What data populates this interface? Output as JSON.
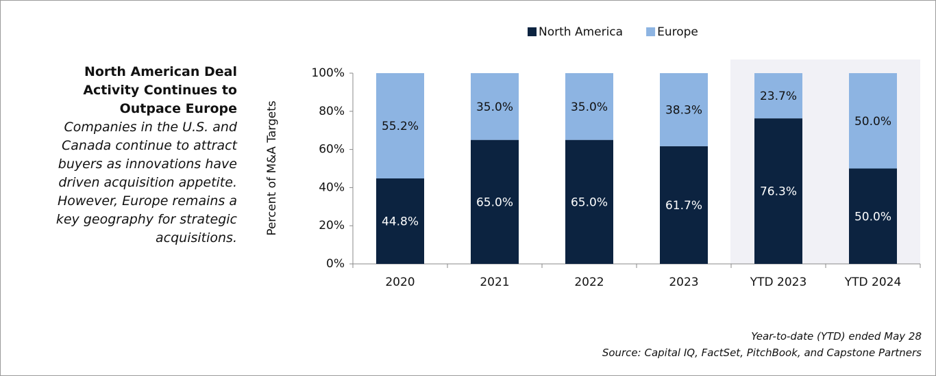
{
  "chart_data": {
    "type": "stacked_bar",
    "title": "North American Deal Activity Continues to Outpace Europe",
    "subtitle": "Companies in the U.S. and Canada continue to attract buyers as innovations have driven acquisition appetite. However, Europe remains a key geography for strategic acquisitions.",
    "y_label": "Percent of M&A Targets",
    "categories": [
      "2020",
      "2021",
      "2022",
      "2023",
      "YTD 2023",
      "YTD 2024"
    ],
    "series": [
      {
        "name": "North America",
        "color": "#0c2340",
        "values": [
          44.8,
          65.0,
          65.0,
          61.7,
          76.3,
          50.0
        ],
        "value_labels": [
          "44.8%",
          "65.0%",
          "65.0%",
          "61.7%",
          "76.3%",
          "50.0%"
        ]
      },
      {
        "name": "Europe",
        "color": "#8db4e2",
        "values": [
          55.2,
          35.0,
          35.0,
          38.3,
          23.7,
          50.0
        ],
        "value_labels": [
          "55.2%",
          "35.0%",
          "35.0%",
          "38.3%",
          "23.7%",
          "50.0%"
        ]
      }
    ],
    "ylim": [
      0,
      100
    ],
    "yticks": [
      {
        "value": 0,
        "label": "0%"
      },
      {
        "value": 20,
        "label": "20%"
      },
      {
        "value": 40,
        "label": "40%"
      },
      {
        "value": 60,
        "label": "60%"
      },
      {
        "value": 80,
        "label": "80%"
      },
      {
        "value": 100,
        "label": "100%"
      }
    ],
    "legend": "top",
    "notes": [
      "Year-to-date (YTD) ended May 28",
      "Source: Capital IQ, FactSet, PitchBook, and Capstone Partners"
    ]
  }
}
